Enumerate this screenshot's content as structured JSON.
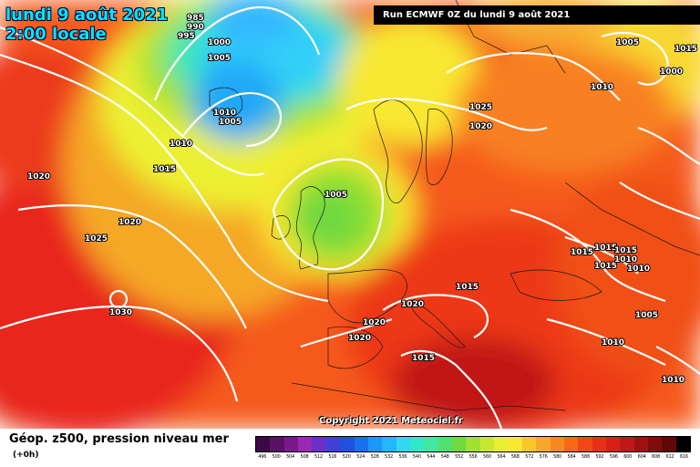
{
  "header": {
    "date_line": "lundi 9 août 2021",
    "time_line": "2:00 locale",
    "run_info": "Run ECMWF 0Z du lundi 9 août 2021"
  },
  "footer": {
    "copyright": "Copyright 2021 Meteociel.fr",
    "legend_title": "Géop. z500, pression niveau mer",
    "legend_sub": "(+0h)"
  },
  "isobar_labels": [
    "985",
    "990",
    "995",
    "1000",
    "1005",
    "1010",
    "1005",
    "1010",
    "1015",
    "1020",
    "1020",
    "1025",
    "1030",
    "1005",
    "1025",
    "1020",
    "1005",
    "1010",
    "1000",
    "1015",
    "1015",
    "1015",
    "1015",
    "1015",
    "1010",
    "1010",
    "1020",
    "1015",
    "1020",
    "1020",
    "1015",
    "1005",
    "1010",
    "1010"
  ],
  "scale": {
    "values": [
      "496",
      "500",
      "504",
      "508",
      "512",
      "516",
      "520",
      "524",
      "528",
      "532",
      "536",
      "540",
      "544",
      "548",
      "552",
      "556",
      "560",
      "564",
      "568",
      "572",
      "576",
      "580",
      "584",
      "588",
      "592",
      "596",
      "600",
      "604",
      "608",
      "612",
      "616"
    ],
    "colors": [
      "#3a0a45",
      "#5a1266",
      "#7a1a8a",
      "#9a2ab0",
      "#6a30c8",
      "#4040d8",
      "#2050e0",
      "#1a70f0",
      "#1a98f8",
      "#20b8ff",
      "#30d8f0",
      "#30e8c8",
      "#40e8a0",
      "#50e070",
      "#70d840",
      "#a0e030",
      "#c8e830",
      "#e8f030",
      "#f8e830",
      "#f8c828",
      "#f8a828",
      "#f88820",
      "#f86818",
      "#f04818",
      "#e83018",
      "#d82018",
      "#c01818",
      "#a01010",
      "#800c0c",
      "#600808",
      "#000000"
    ]
  }
}
